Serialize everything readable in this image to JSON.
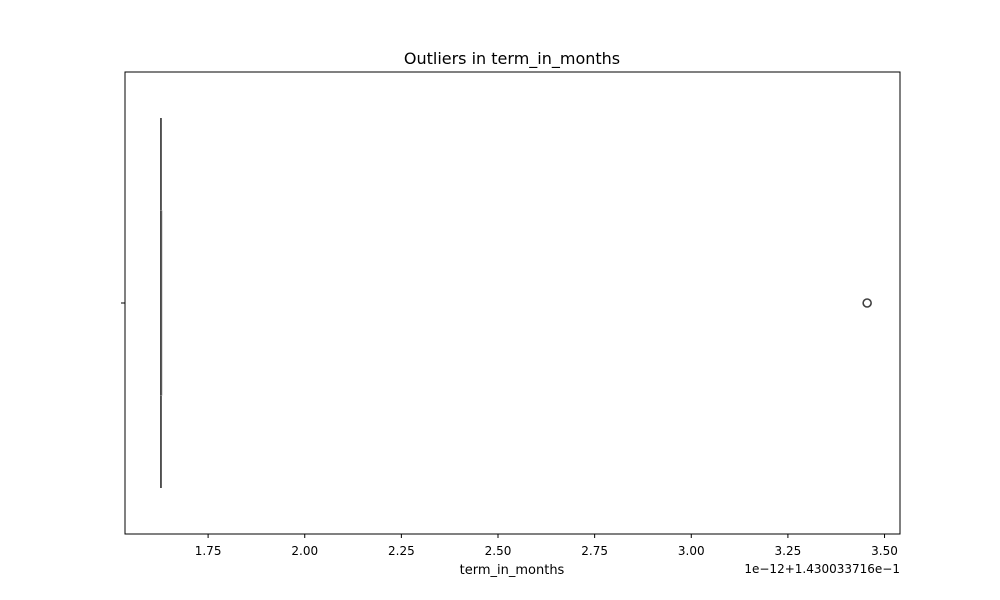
{
  "chart_data": {
    "type": "box",
    "title": "Outliers in term_in_months",
    "xlabel": "term_in_months",
    "ylabel": "",
    "x_offset_label": "1e−12+1.430033716e−1",
    "xlim": [
      1.535,
      3.54
    ],
    "x_ticks": [
      1.75,
      2.0,
      2.25,
      2.5,
      2.75,
      3.0,
      3.25,
      3.5
    ],
    "x_tick_labels": [
      "1.75",
      "2.00",
      "2.25",
      "2.50",
      "2.75",
      "3.00",
      "3.25",
      "3.50"
    ],
    "orientation": "horizontal",
    "box": {
      "whisker_low": 1.628,
      "q1": 1.628,
      "median": 1.628,
      "q3": 1.628,
      "whisker_high": 1.628
    },
    "outliers": [
      3.455
    ],
    "grid": false,
    "colors": {
      "box_edge": "#3f3f3f",
      "outlier_edge": "#3f3f3f",
      "axes": "#000000"
    }
  }
}
